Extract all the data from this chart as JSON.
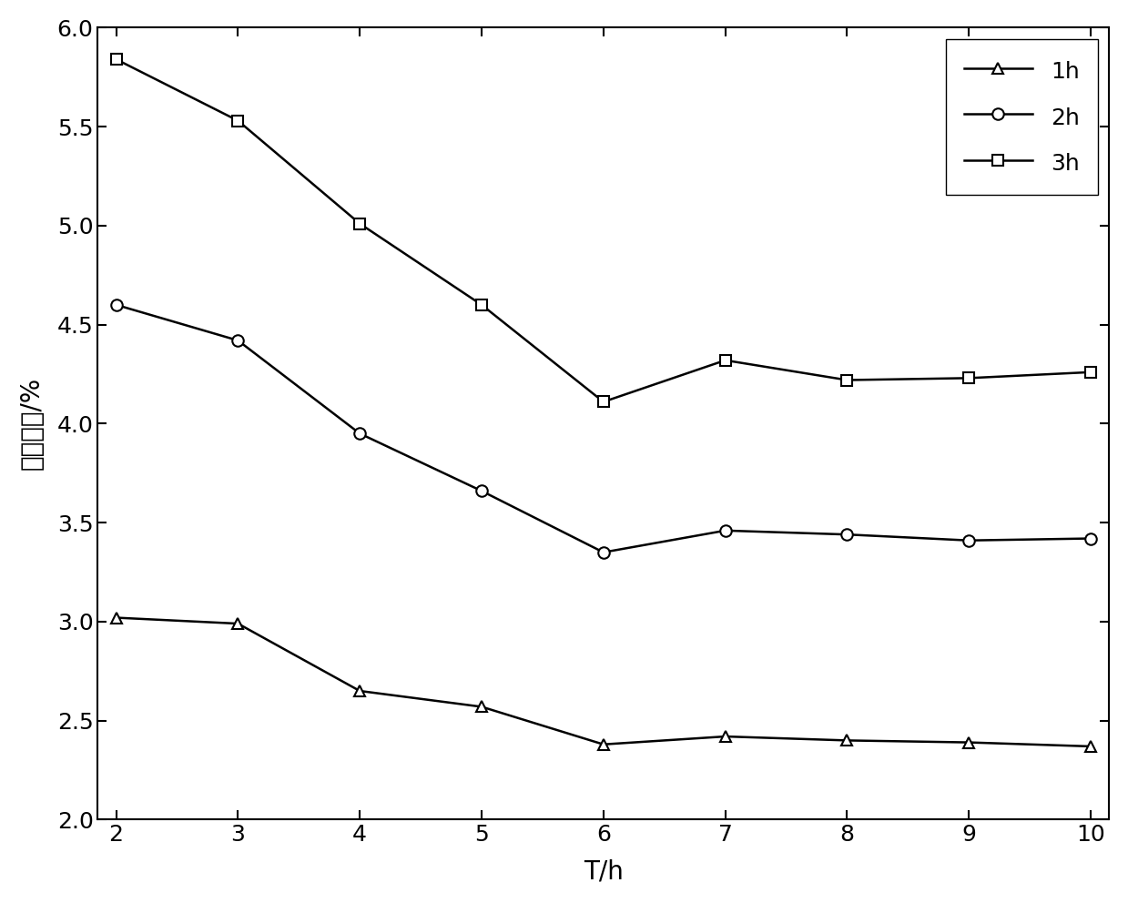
{
  "x": [
    2,
    3,
    4,
    5,
    6,
    7,
    8,
    9,
    10
  ],
  "series_1h": [
    3.02,
    2.99,
    2.65,
    2.57,
    2.38,
    2.42,
    2.4,
    2.39,
    2.37
  ],
  "series_2h": [
    4.6,
    4.42,
    3.95,
    3.66,
    3.35,
    3.46,
    3.44,
    3.41,
    3.42
  ],
  "series_3h": [
    5.84,
    5.53,
    5.01,
    4.6,
    4.11,
    4.32,
    4.22,
    4.23,
    4.26
  ],
  "xlabel": "T/h",
  "ylabel": "平均误差/%",
  "xlim": [
    2,
    10
  ],
  "ylim": [
    2.0,
    6.0
  ],
  "yticks": [
    2.0,
    2.5,
    3.0,
    3.5,
    4.0,
    4.5,
    5.0,
    5.5,
    6.0
  ],
  "xticks": [
    2,
    3,
    4,
    5,
    6,
    7,
    8,
    9,
    10
  ],
  "legend_labels": [
    "1h",
    "2h",
    "3h"
  ],
  "line_color": "#000000",
  "background_color": "#ffffff",
  "linewidth": 1.8,
  "markersize": 9
}
